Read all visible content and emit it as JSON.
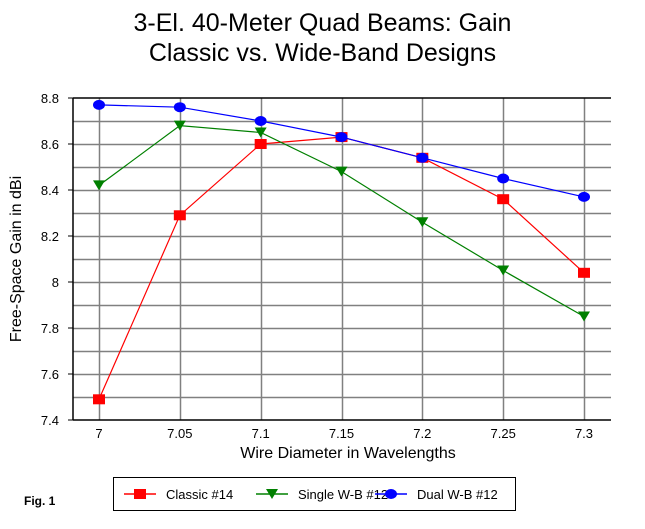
{
  "figure_label": "Fig. 1",
  "chart_data": {
    "type": "line",
    "title": [
      "3-El. 40-Meter Quad Beams:  Gain",
      "Classic vs. Wide-Band Designs"
    ],
    "xlabel": "Wire Diameter in Wavelengths",
    "ylabel": "Free-Space Gain in dBi",
    "x": [
      7,
      7.05,
      7.1,
      7.15,
      7.2,
      7.25,
      7.3
    ],
    "x_tick_labels": [
      "7",
      "7.05",
      "7.1",
      "7.15",
      "7.2",
      "7.25",
      "7.3"
    ],
    "y_tick_labels": [
      "8.8",
      "8.6",
      "8.4",
      "8.2",
      "8",
      "7.8",
      "7.6",
      "7.4"
    ],
    "ylim": [
      7.4,
      8.8
    ],
    "y_major_step": 0.2,
    "y_minor_step": 0.1,
    "grid": true,
    "legend_position": "bottom",
    "series": [
      {
        "name": "Classic #14",
        "color": "#ff0000",
        "marker": "square",
        "values": [
          7.49,
          8.29,
          8.6,
          8.63,
          8.54,
          8.36,
          8.04
        ]
      },
      {
        "name": "Single W-B #12",
        "color": "#008000",
        "marker": "triangle-down",
        "values": [
          8.42,
          8.68,
          8.65,
          8.48,
          8.26,
          8.05,
          7.85
        ]
      },
      {
        "name": "Dual W-B #12",
        "color": "#0000ff",
        "marker": "circle",
        "values": [
          8.77,
          8.76,
          8.7,
          8.63,
          8.54,
          8.45,
          8.37
        ]
      }
    ]
  }
}
